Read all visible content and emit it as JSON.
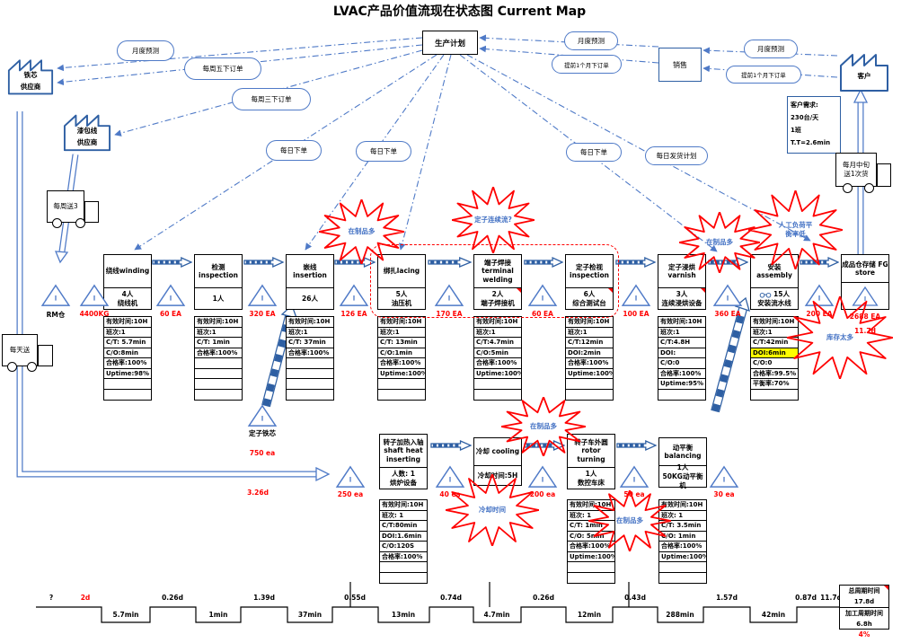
{
  "title": "LVAC产品价值流现在状态图 Current Map",
  "colors": {
    "line_blue": "#2E5FA3",
    "info_blue": "#4f7ac7",
    "alert_red": "#FF0000",
    "burst_text_blue": "#4472C4",
    "highlight_yellow": "#FFFF00"
  },
  "suppliers": {
    "core": {
      "line1": "铁芯",
      "line2": "供应商"
    },
    "wire": {
      "line1": "漆包线",
      "line2": "供应商"
    }
  },
  "customer": {
    "name": "客户"
  },
  "sales": {
    "name": "销售"
  },
  "production_plan": {
    "name": "生产计划"
  },
  "demand": {
    "title": "客户需求:",
    "l1": "230台/天",
    "l2": "1班",
    "l3": "T.T=2.6min"
  },
  "ovals": {
    "monthly_forecast_1": "月度预测",
    "weekly_friday_order": "每周五下订单",
    "weekly_wednesday_order": "每周三下订单",
    "daily_order_1": "每日下单",
    "daily_order_2": "每日下单",
    "monthly_forecast_2": "月度预测",
    "order_1month_ahead_1": "提前1个月下订单",
    "daily_order_3": "每日下单",
    "daily_shipping_plan": "每日发货计划",
    "monthly_forecast_3": "月度预测",
    "order_1month_ahead_2": "提前1个月下订单"
  },
  "trucks": {
    "weekly": "每周送3",
    "daily": "每天送",
    "monthly_l1": "每月中旬",
    "monthly_l2": "送1次货"
  },
  "processes": {
    "winding": {
      "t1": "绕线winding",
      "staff": "4人",
      "machine": "绕线机",
      "rows": [
        "有效时间:10H",
        "班次:1",
        "C/T:  5.7min",
        "C/O:8min",
        "合格率:100%",
        "Uptime:98%",
        "",
        ""
      ]
    },
    "inspection": {
      "t1": "检测",
      "t2": "inspection",
      "staff": "1人",
      "rows": [
        "有效时间:10H",
        "班次:1",
        "C/T:  1min",
        "合格率:100%",
        "",
        "",
        "",
        ""
      ]
    },
    "insertion": {
      "t1": "嵌线insertion",
      "staff": "26人",
      "rows": [
        "有效时间:10H",
        "班次:1",
        "C/T:  37min",
        "合格率:100%",
        "",
        "",
        "",
        ""
      ]
    },
    "lacing": {
      "t1": "绑扎lacing",
      "staff": "5人",
      "machine": "油压机",
      "rows": [
        "有效时间:10H",
        "班次:1",
        "C/T:  13min",
        "C/O:1min",
        "合格率:100%",
        "Uptime:100%",
        "",
        ""
      ]
    },
    "welding": {
      "t1": "端子焊接",
      "t2": "terminal",
      "t3": "welding",
      "staff": "2人",
      "machine": "端子焊接机",
      "rows": [
        "有效时间:10H",
        "班次:1",
        "C/T:4.7min",
        "C/O:5min",
        "合格率:100%",
        "Uptime:100%",
        "",
        ""
      ]
    },
    "stator_inspection": {
      "t1": "定子检视",
      "t2": "inspection",
      "staff": "6人",
      "machine": "综合测试台",
      "rows": [
        "有效时间:10H",
        "班次:1",
        "C/T:12min",
        "DOI:2min",
        "合格率:100%",
        "Uptime:100%",
        "",
        ""
      ]
    },
    "varnish": {
      "t1": "定子浸烘",
      "t2": "varnish",
      "staff": "3人",
      "machine": "连续浸烘设备",
      "rows": [
        "有效时间:10H",
        "班次:1",
        "C/T:4.8H",
        "DOI:",
        "C/O:0",
        "合格率:100%",
        "Uptime:95%",
        ""
      ]
    },
    "assembly": {
      "t1": "安装assembly",
      "staff": "15人",
      "machine": "安装流水线",
      "rows": [
        "有效时间:10H",
        "班次:1",
        "C/T:42min",
        {
          "t": "DOI:6min",
          "hl": true
        },
        "C/O:0",
        "合格率:99.5%",
        "平衡率:70%",
        ""
      ]
    },
    "fg_store": {
      "t1": "成品仓存储 FG",
      "t2": "store",
      "qty": "2688 EA",
      "days": "11.7d"
    },
    "shaft_heat": {
      "t1": "转子加热入轴",
      "t2": "shaft heat",
      "t3": "inserting",
      "staff": "人数:  1",
      "machine": "烘炉设备",
      "rows": [
        "有效时间:10H",
        "班次:  1",
        "C/T:80min",
        "DOI:1.6min",
        "C/O:120S",
        "合格率:100%",
        "",
        ""
      ]
    },
    "cooling": {
      "t1": "冷却 cooling",
      "cell": "冷却时间:5H"
    },
    "rotor_turning": {
      "t1": "转子车外圆",
      "t2": "rotor",
      "t3": "turning",
      "staff": "1人",
      "machine": "数控车床",
      "rows": [
        "有效时间:10H",
        "班次:  1",
        "C/T:  1min",
        "C/O:  5min",
        "合格率:100%",
        "Uptime:100%",
        "",
        ""
      ]
    },
    "balancing": {
      "t1": "动平衡",
      "t2": "balancing",
      "staff": "1人",
      "machine": "50KG动平衡机",
      "rows": [
        "有效时间:10H",
        "班次:  1",
        "C/T:  3.5min",
        "C/O:  1min",
        "合格率:100%",
        "Uptime:100%",
        "",
        ""
      ]
    }
  },
  "inventory": {
    "rm": "RM仓",
    "kg": "4400KG",
    "i60a": "60 EA",
    "i320": "320 EA",
    "i126": "126 EA",
    "i170": "170 EA",
    "i60b": "60 EA",
    "i100": "100 EA",
    "i360": "360 EA",
    "i200": "200 EA",
    "r250": "250 ea",
    "r40": "40 ea",
    "r200": "200 ea",
    "r50": "50 ea",
    "r30": "30 ea",
    "core_label": "定子铁芯",
    "core_qty": "750 ea",
    "transport_time": "3.26d"
  },
  "bursts": {
    "wip1": "在制品多",
    "stator_flow": "定子连续流?",
    "wip2": "在制品多",
    "labor_l1": "人工负荷平",
    "labor_l2": "衡率低",
    "stock": "库存太多",
    "wip3": "在制品多",
    "cooling_time": "冷却时间",
    "wip4": "在制品多"
  },
  "timeline": {
    "top": [
      "?",
      "2d",
      "0.26d",
      "1.39d",
      "0.55d",
      "0.74d",
      "0.26d",
      "0.43d",
      "1.57d",
      "0.87d",
      "11.7d"
    ],
    "bottom": [
      "5.7min",
      "1min",
      "37min",
      "13min",
      "4.7min",
      "12min",
      "288min",
      "42min"
    ]
  },
  "summary": {
    "r1": "总周期时间",
    "v1": "17.8d",
    "r2": "加工周期时间",
    "v2": "6.8h",
    "pct": "4%"
  }
}
